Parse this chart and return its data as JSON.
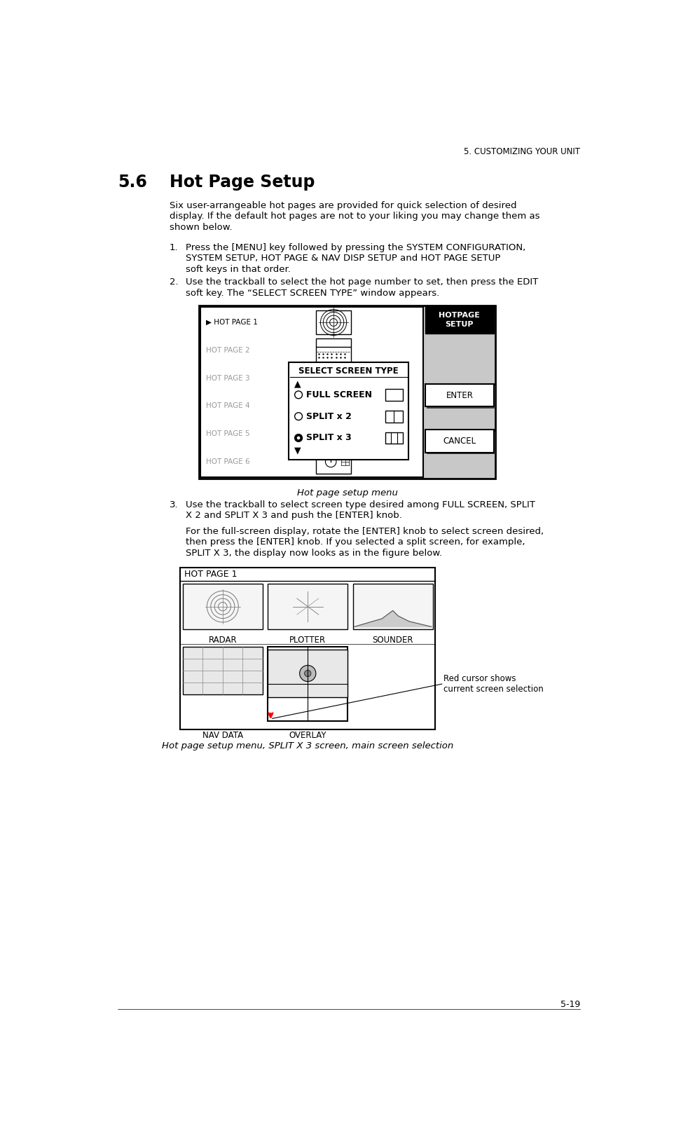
{
  "bg_color": "#ffffff",
  "header_text": "5. CUSTOMIZING YOUR UNIT",
  "section_num": "5.6",
  "section_title": "Hot Page Setup",
  "body_line1": "Six user-arrangeable hot pages are provided for quick selection of desired",
  "body_line2": "display. If the default hot pages are not to your liking you may change them as",
  "body_line3": "shown below.",
  "item1_line1": "Press the [MENU] key followed by pressing the SYSTEM CONFIGURATION,",
  "item1_line2": "SYSTEM SETUP, HOT PAGE & NAV DISP SETUP and HOT PAGE SETUP",
  "item1_line3": "soft keys in that order.",
  "item2_line1": "Use the trackball to select the hot page number to set, then press the EDIT",
  "item2_line2": "soft key. The “SELECT SCREEN TYPE” window appears.",
  "fig1_caption": "Hot page setup menu",
  "item3_line1": "Use the trackball to select screen type desired among FULL SCREEN, SPLIT",
  "item3_line2": "X 2 and SPLIT X 3 and push the [ENTER] knob.",
  "sub_line1": "For the full-screen display, rotate the [ENTER] knob to select screen desired,",
  "sub_line2": "then press the [ENTER] knob. If you selected a split screen, for example,",
  "sub_line3": "SPLIT X 3, the display now looks as in the figure below.",
  "fig2_caption": "Hot page setup menu, SPLIT X 3 screen, main screen selection",
  "footer_text": "5-19",
  "text_color": "#000000",
  "gray_color": "#aaaaaa",
  "light_gray": "#c8c8c8",
  "dark_bg": "#888888"
}
